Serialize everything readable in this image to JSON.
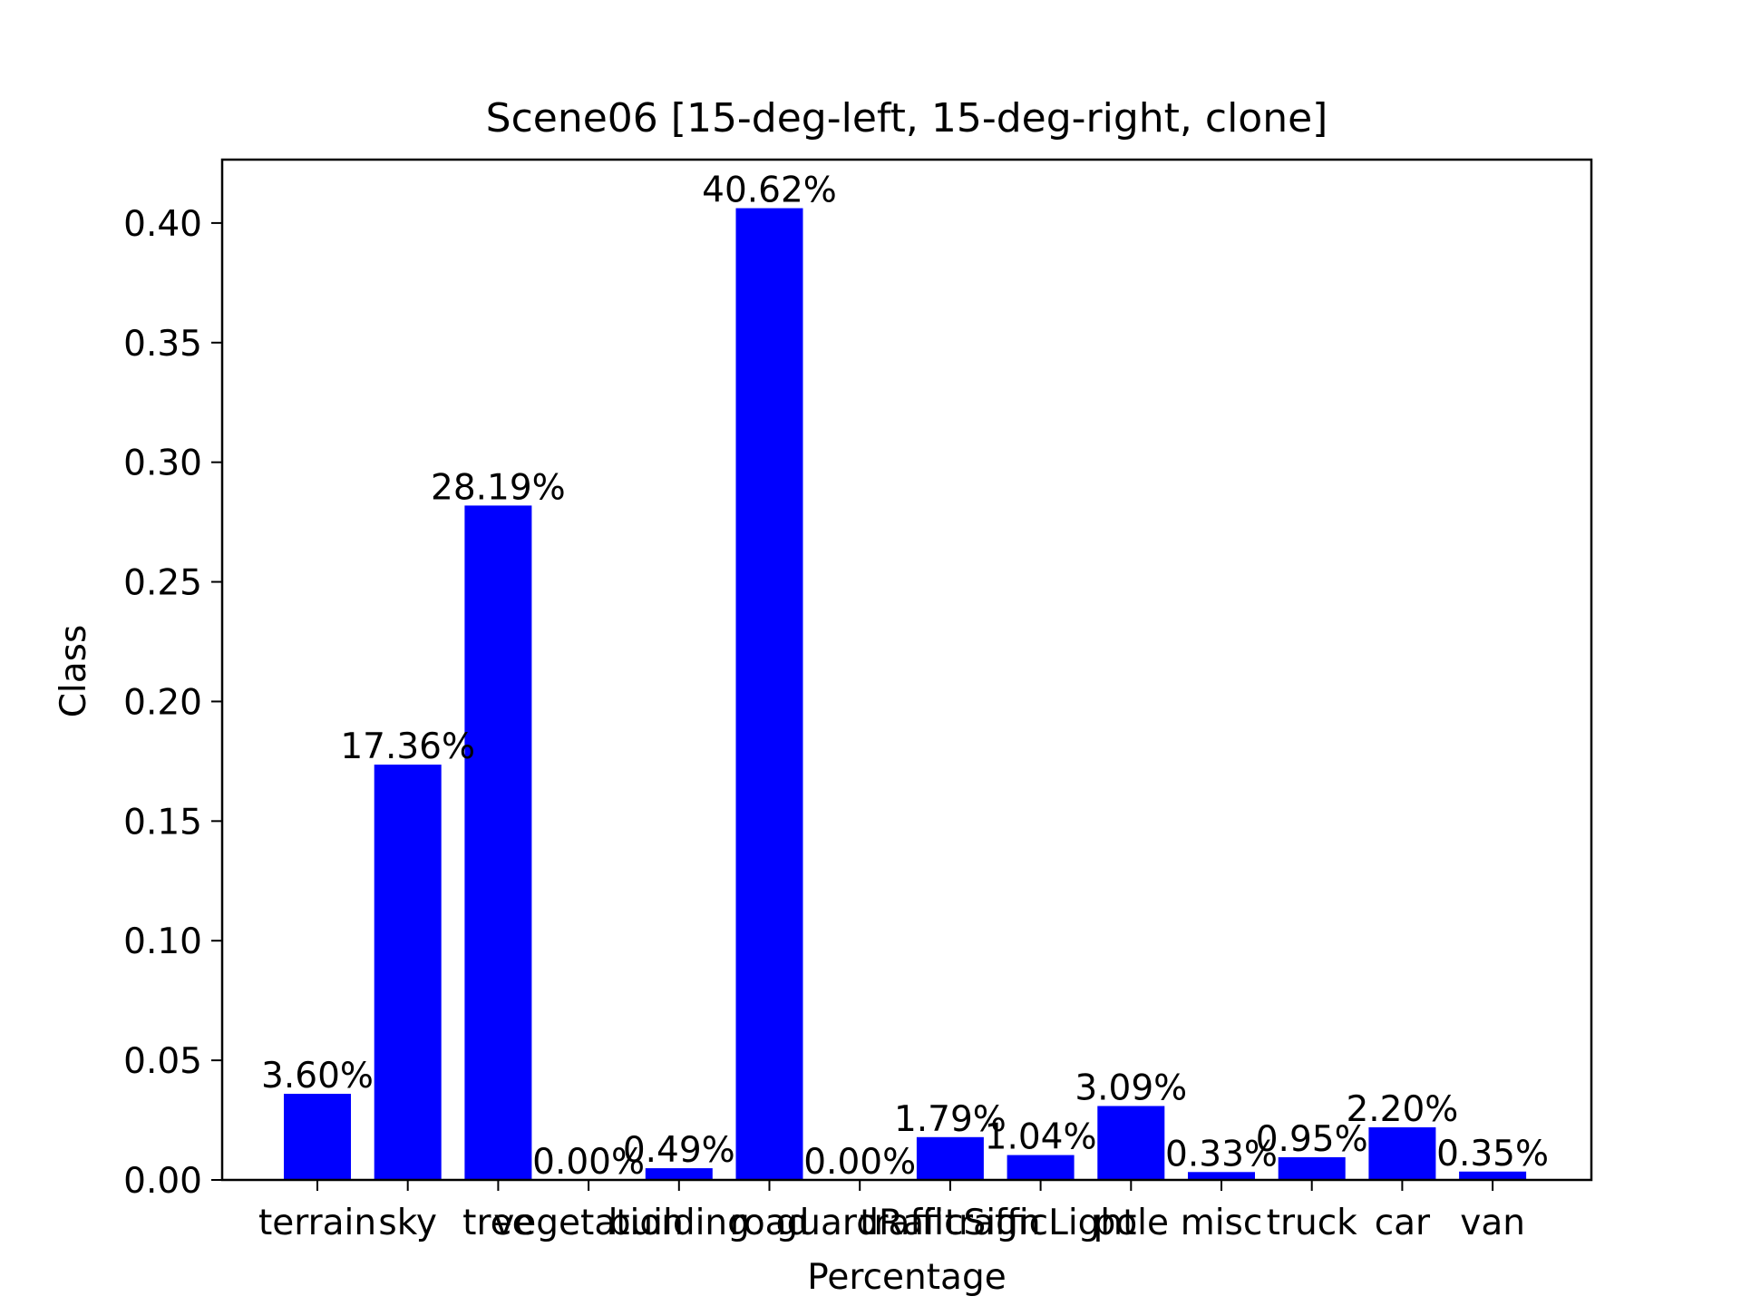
{
  "chart_data": {
    "type": "bar",
    "title": "Scene06 [15-deg-left, 15-deg-right, clone]",
    "xlabel": "Percentage",
    "ylabel": "Class",
    "categories": [
      "terrain",
      "sky",
      "tree",
      "vegetation",
      "building",
      "road",
      "guardRail",
      "trafficSign",
      "trafficLight",
      "pole",
      "misc",
      "truck",
      "car",
      "van"
    ],
    "values": [
      0.036,
      0.1736,
      0.2819,
      0.0,
      0.0049,
      0.4062,
      0.0,
      0.0179,
      0.0104,
      0.0309,
      0.0033,
      0.0095,
      0.022,
      0.0035
    ],
    "data_labels": [
      "3.60%",
      "17.36%",
      "28.19%",
      "0.00%",
      "0.49%",
      "40.62%",
      "0.00%",
      "1.79%",
      "1.04%",
      "3.09%",
      "0.33%",
      "0.95%",
      "2.20%",
      "0.35%"
    ],
    "ylim": [
      0,
      0.4265
    ],
    "yticks": [
      0.0,
      0.05,
      0.1,
      0.15,
      0.2,
      0.25,
      0.3,
      0.35,
      0.4
    ],
    "ytick_labels": [
      "0.00",
      "0.05",
      "0.10",
      "0.15",
      "0.20",
      "0.25",
      "0.30",
      "0.35",
      "0.40"
    ],
    "bar_color": "#0000ff",
    "grid": false,
    "legend": "none"
  }
}
